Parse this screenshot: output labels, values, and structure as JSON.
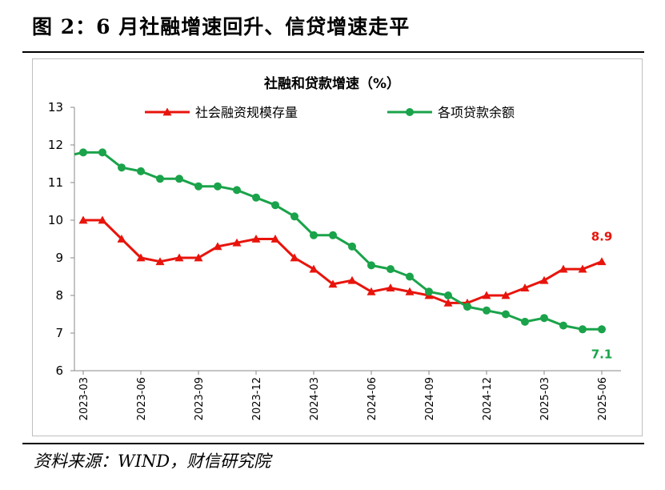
{
  "figure": {
    "title": "图 2：6 月社融增速回升、信贷增速走平",
    "source": "资料来源：WIND，财信研究院"
  },
  "colors": {
    "series1": "#e8140c",
    "series2": "#1aa34a",
    "axis": "#888888"
  },
  "chart_data": {
    "type": "line",
    "title": "社融和贷款增速（%）",
    "xlabel": "",
    "ylabel": "",
    "ylim": [
      6,
      13
    ],
    "yticks": [
      "6",
      "7",
      "8",
      "9",
      "10",
      "11",
      "12",
      "13"
    ],
    "xticks": [
      "2023-03",
      "2023-06",
      "2023-09",
      "2023-12",
      "2024-03",
      "2024-06",
      "2024-09",
      "2024-12",
      "2025-03",
      "2025-06"
    ],
    "legend_position": "top",
    "grid": false,
    "series": [
      {
        "name": "社会融资规模存量",
        "marker": "triangle",
        "values": [
          10.0,
          10.0,
          9.5,
          9.0,
          8.9,
          9.0,
          9.0,
          9.3,
          9.4,
          9.5,
          9.5,
          9.0,
          8.7,
          8.3,
          8.4,
          8.1,
          8.2,
          8.1,
          8.0,
          7.8,
          7.8,
          8.0,
          8.0,
          8.2,
          8.4,
          8.7,
          8.7,
          8.9
        ],
        "end_label": "8.9"
      },
      {
        "name": "各项贷款余额",
        "marker": "circle",
        "start_value": 11.75,
        "values": [
          11.8,
          11.8,
          11.4,
          11.3,
          11.1,
          11.1,
          10.9,
          10.9,
          10.8,
          10.6,
          10.4,
          10.1,
          9.6,
          9.6,
          9.3,
          8.8,
          8.7,
          8.5,
          8.1,
          8.0,
          7.7,
          7.6,
          7.5,
          7.3,
          7.4,
          7.2,
          7.1,
          7.1
        ],
        "end_label": "7.1"
      }
    ]
  }
}
